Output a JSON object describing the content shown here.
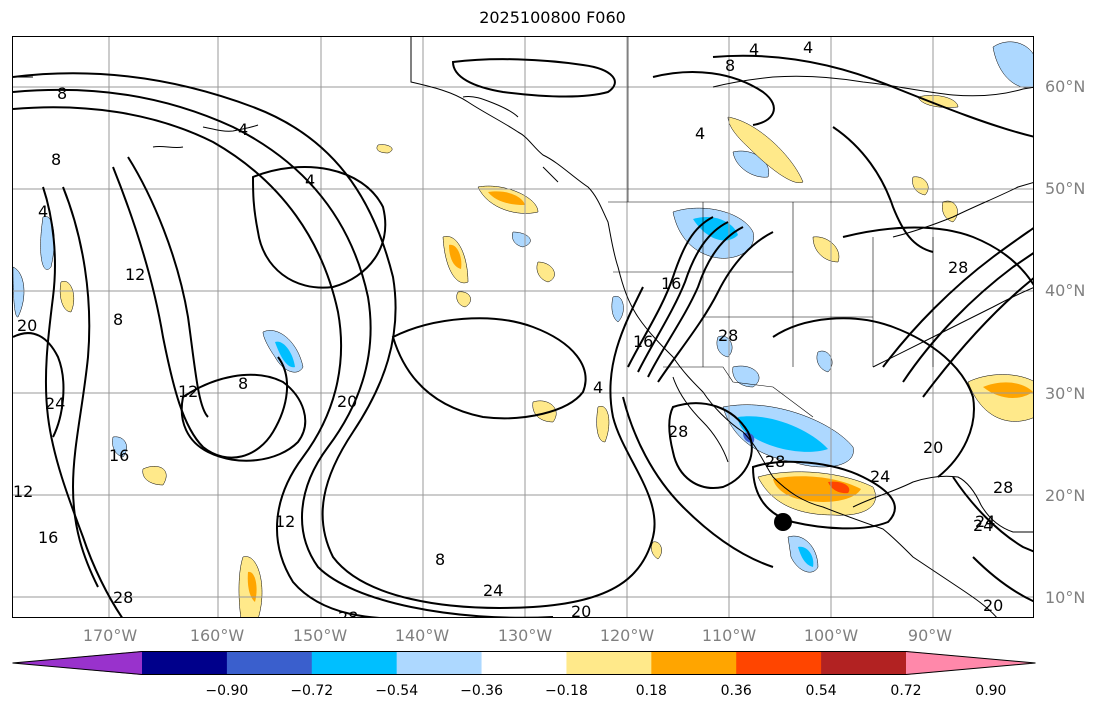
{
  "title": "2025100800 F060",
  "lat_labels": [
    "60°N",
    "50°N",
    "40°N",
    "30°N",
    "20°N",
    "10°N"
  ],
  "lon_labels": [
    "170°W",
    "160°W",
    "150°W",
    "140°W",
    "130°W",
    "120°W",
    "110°W",
    "100°W",
    "90°W"
  ],
  "colorbar": {
    "ticks": [
      "−0.90",
      "−0.72",
      "−0.54",
      "−0.36",
      "−0.18",
      "0.18",
      "0.36",
      "0.54",
      "0.72",
      "0.90"
    ],
    "colors": [
      "#9932cc",
      "#00008b",
      "#3a5fcd",
      "#00bfff",
      "#add8ff",
      "#ffffff",
      "#ffe98a",
      "#ffa500",
      "#ff4500",
      "#b22222",
      "#ff88aa"
    ]
  },
  "contour_labels": [
    "4",
    "4",
    "4",
    "4",
    "4",
    "8",
    "8",
    "8",
    "8",
    "8",
    "4",
    "12",
    "12",
    "12",
    "16",
    "16",
    "20",
    "20",
    "20",
    "24",
    "24",
    "24",
    "24",
    "28",
    "28",
    "28",
    "28",
    "28",
    "28",
    "12",
    "16",
    "20",
    "16",
    "20",
    "4",
    "8",
    "24",
    "28"
  ],
  "marker": "storm-center-dot"
}
